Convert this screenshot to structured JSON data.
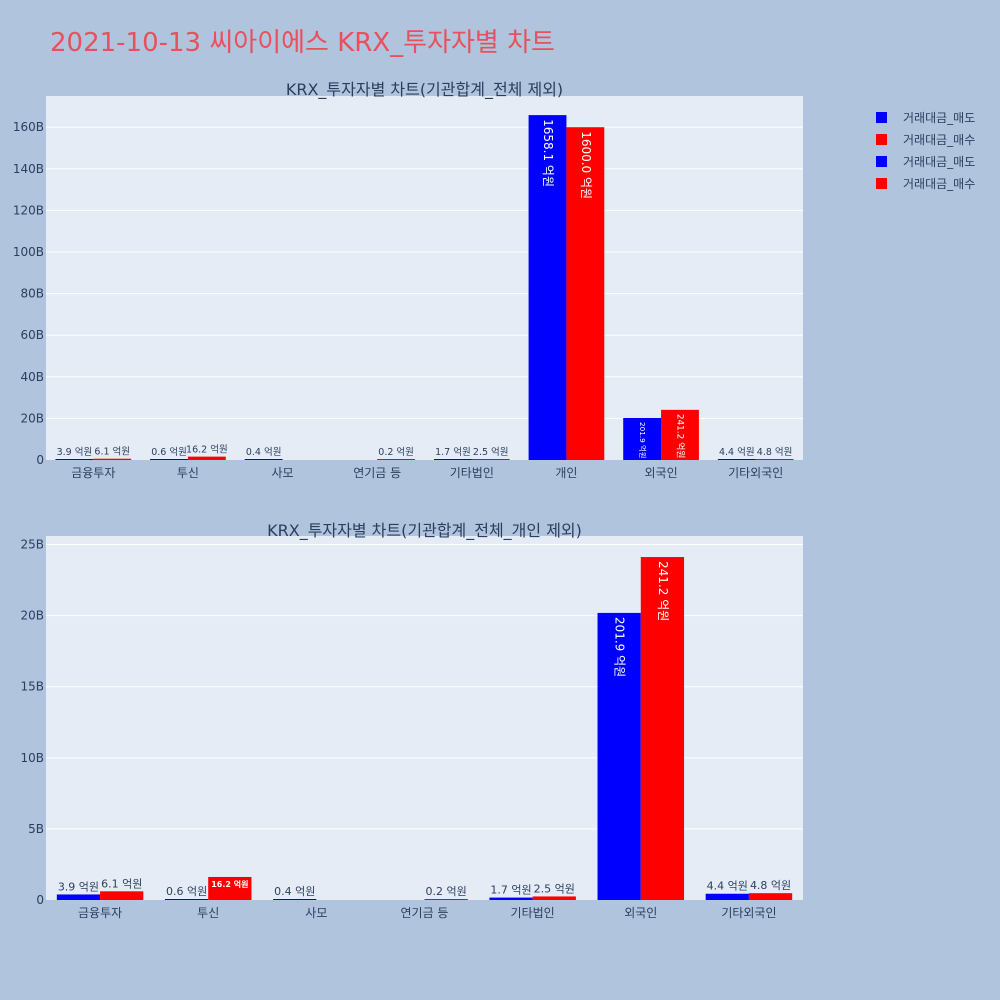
{
  "page": {
    "title": "2021-10-13 씨아이에스 KRX_투자자별 차트"
  },
  "colors": {
    "sell": "#0000ff",
    "buy": "#ff0000"
  },
  "legend": [
    {
      "label": "거래대금_매도",
      "color": "#0000ff"
    },
    {
      "label": "거래대금_매수",
      "color": "#ff0000"
    },
    {
      "label": "거래대금_매도",
      "color": "#0000ff"
    },
    {
      "label": "거래대금_매수",
      "color": "#ff0000"
    }
  ],
  "chart_data": [
    {
      "type": "bar",
      "title": "KRX_투자자별 차트(기관합계_전체 제외)",
      "categories": [
        "금융투자",
        "투신",
        "사모",
        "연기금 등",
        "기타법인",
        "개인",
        "외국인",
        "기타외국인"
      ],
      "ylim": [
        0,
        175000000000
      ],
      "yticks": [
        0,
        20000000000,
        40000000000,
        60000000000,
        80000000000,
        100000000000,
        120000000000,
        140000000000,
        160000000000
      ],
      "ytick_labels": [
        "0",
        "20B",
        "40B",
        "60B",
        "80B",
        "100B",
        "120B",
        "140B",
        "160B"
      ],
      "grid": true,
      "series": [
        {
          "name": "거래대금_매도",
          "color": "#0000ff",
          "values": [
            390000000,
            60000000,
            40000000,
            null,
            170000000,
            165810000000,
            20190000000,
            440000000
          ],
          "labels": [
            "3.9 억원",
            "0.6 억원",
            "0.4 억원",
            "",
            "1.7 억원",
            "1658.1 억원",
            "201.9 억원",
            "4.4 억원"
          ]
        },
        {
          "name": "거래대금_매수",
          "color": "#ff0000",
          "values": [
            610000000,
            1620000000,
            null,
            20000000,
            250000000,
            160000000000,
            24120000000,
            480000000
          ],
          "labels": [
            "6.1 억원",
            "16.2 억원",
            "",
            "0.2 억원",
            "2.5 억원",
            "1600.0 억원",
            "241.2 억원",
            "4.8 억원"
          ]
        }
      ]
    },
    {
      "type": "bar",
      "title": "KRX_투자자별 차트(기관합계_전체_개인 제외)",
      "categories": [
        "금융투자",
        "투신",
        "사모",
        "연기금 등",
        "기타법인",
        "외국인",
        "기타외국인"
      ],
      "ylim": [
        0,
        25600000000
      ],
      "yticks": [
        0,
        5000000000,
        10000000000,
        15000000000,
        20000000000,
        25000000000
      ],
      "ytick_labels": [
        "0",
        "5B",
        "10B",
        "15B",
        "20B",
        "25B"
      ],
      "grid": true,
      "series": [
        {
          "name": "거래대금_매도",
          "color": "#0000ff",
          "values": [
            390000000,
            60000000,
            40000000,
            null,
            170000000,
            20190000000,
            440000000
          ],
          "labels": [
            "3.9 억원",
            "0.6 억원",
            "0.4 억원",
            "",
            "1.7 억원",
            "201.9 억원",
            "4.4 억원"
          ]
        },
        {
          "name": "거래대금_매수",
          "color": "#ff0000",
          "values": [
            610000000,
            1620000000,
            null,
            20000000,
            250000000,
            24120000000,
            480000000
          ],
          "labels": [
            "6.1 억원",
            "16.2 억원",
            "",
            "0.2 억원",
            "2.5 억원",
            "241.2 억원",
            "4.8 억원"
          ]
        }
      ]
    }
  ]
}
